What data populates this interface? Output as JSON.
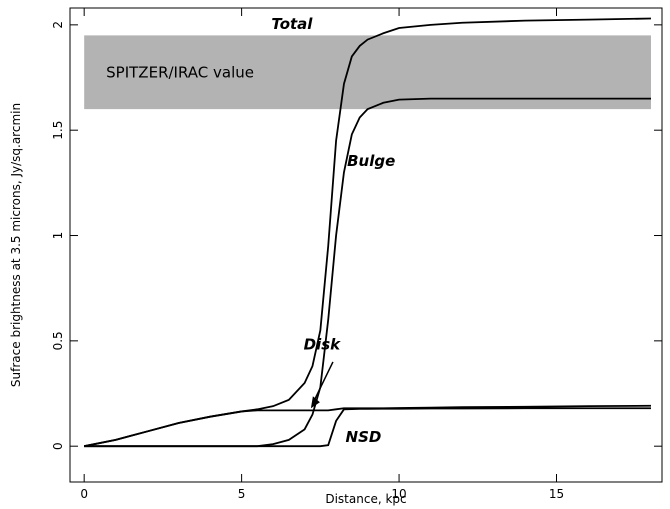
{
  "chart_data": {
    "type": "line",
    "xlabel": "Distance, kpc",
    "ylabel": "Sufrace brightness at 3.5 microns, Jy/sq.arcmin",
    "x": [
      0,
      1,
      2,
      3,
      4,
      5,
      5.5,
      6,
      6.5,
      7,
      7.25,
      7.5,
      7.75,
      8,
      8.25,
      8.5,
      8.75,
      9,
      9.5,
      10,
      11,
      12,
      14,
      16,
      18
    ],
    "series": [
      {
        "name": "Total",
        "color": "#000000",
        "values": [
          0,
          0.03,
          0.07,
          0.11,
          0.14,
          0.165,
          0.175,
          0.19,
          0.22,
          0.3,
          0.38,
          0.55,
          0.95,
          1.45,
          1.72,
          1.85,
          1.9,
          1.93,
          1.96,
          1.985,
          2.0,
          2.01,
          2.02,
          2.025,
          2.03
        ]
      },
      {
        "name": "Bulge",
        "color": "#000000",
        "values": [
          0,
          0,
          0,
          0,
          0,
          0,
          0,
          0.01,
          0.03,
          0.08,
          0.15,
          0.28,
          0.6,
          1.0,
          1.3,
          1.48,
          1.56,
          1.6,
          1.63,
          1.645,
          1.65,
          1.65,
          1.65,
          1.65,
          1.65
        ]
      },
      {
        "name": "Disk",
        "color": "#000000",
        "values": [
          0,
          0.03,
          0.07,
          0.11,
          0.14,
          0.165,
          0.17,
          0.17,
          0.17,
          0.17,
          0.17,
          0.17,
          0.17,
          0.175,
          0.18,
          0.18,
          0.18,
          0.18,
          0.18,
          0.181,
          0.183,
          0.185,
          0.187,
          0.19,
          0.192
        ]
      },
      {
        "name": "NSD",
        "color": "#000000",
        "values": [
          0,
          0,
          0,
          0,
          0,
          0,
          0,
          0,
          0,
          0,
          0,
          0,
          0.005,
          0.12,
          0.175,
          0.176,
          0.177,
          0.177,
          0.178,
          0.178,
          0.179,
          0.179,
          0.18,
          0.18,
          0.18
        ]
      }
    ],
    "band": {
      "label": "SPITZER/IRAC value",
      "x": [
        0,
        18
      ],
      "y": [
        1.6,
        1.95
      ],
      "color": "#b3b3b3"
    },
    "xlim": [
      -0.45,
      18.35
    ],
    "ylim": [
      -0.17,
      2.08
    ],
    "xticks": [
      0,
      5,
      10,
      15
    ],
    "yticks": [
      0,
      0.5,
      1,
      1.5,
      2
    ]
  }
}
